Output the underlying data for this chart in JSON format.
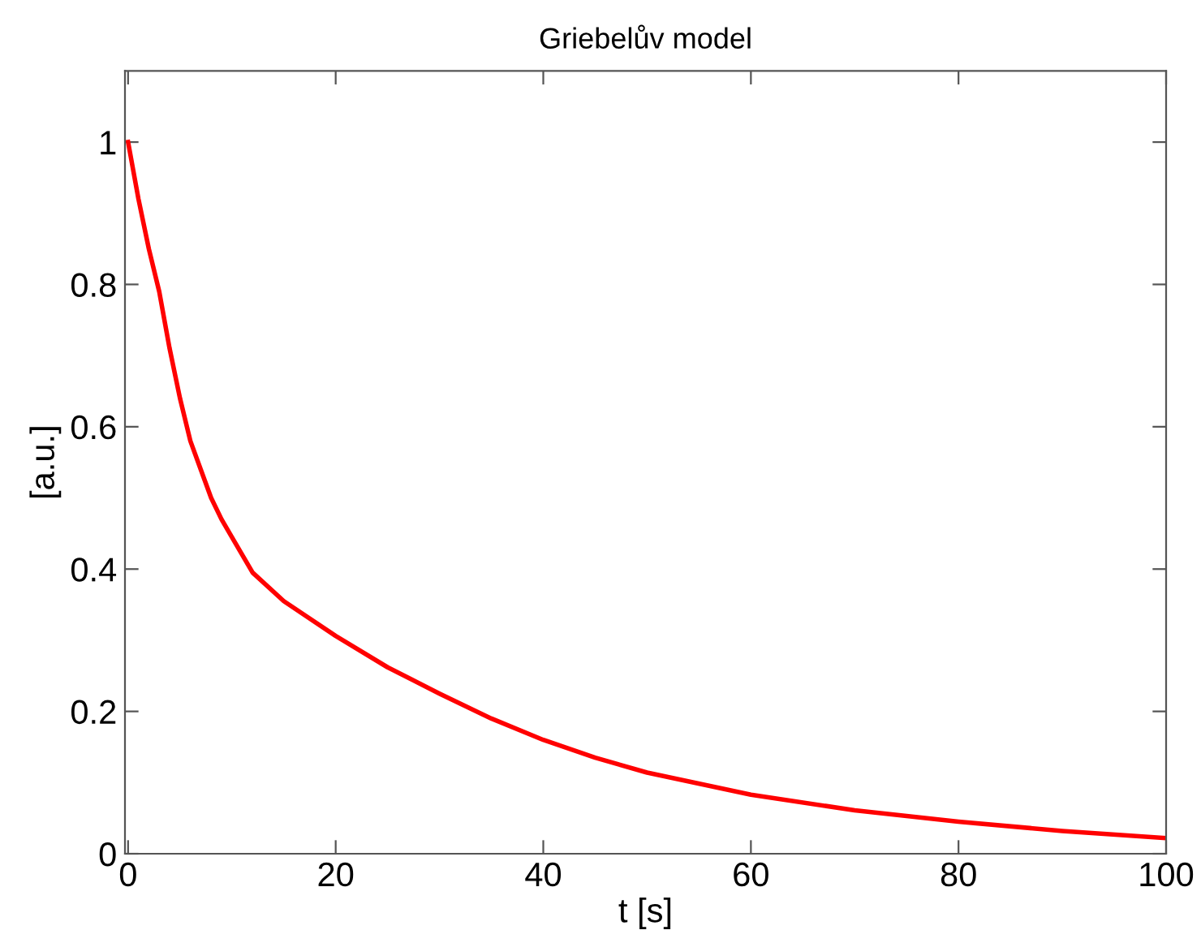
{
  "chart_data": {
    "type": "line",
    "title": "Griebelův model",
    "xlabel": "t [s]",
    "ylabel": "[a.u.]",
    "x": [
      0,
      1,
      2,
      3,
      4,
      5,
      6,
      7,
      8,
      9,
      10,
      12,
      15,
      20,
      25,
      30,
      35,
      40,
      45,
      50,
      60,
      70,
      80,
      90,
      100
    ],
    "series": [
      {
        "color": "#ff0000",
        "values": [
          1.0,
          0.92,
          0.85,
          0.79,
          0.71,
          0.64,
          0.58,
          0.54,
          0.5,
          0.47,
          0.445,
          0.395,
          0.355,
          0.306,
          0.262,
          0.225,
          0.19,
          0.16,
          0.135,
          0.114,
          0.083,
          0.061,
          0.045,
          0.032,
          0.022
        ]
      }
    ],
    "xlim": [
      -0.3,
      100
    ],
    "ylim": [
      0,
      1.1
    ],
    "xticks": [
      0,
      20,
      40,
      60,
      80,
      100
    ],
    "yticks": [
      0,
      0.2,
      0.4,
      0.6,
      0.8,
      1
    ],
    "marker": "none",
    "line_style": "solid"
  }
}
